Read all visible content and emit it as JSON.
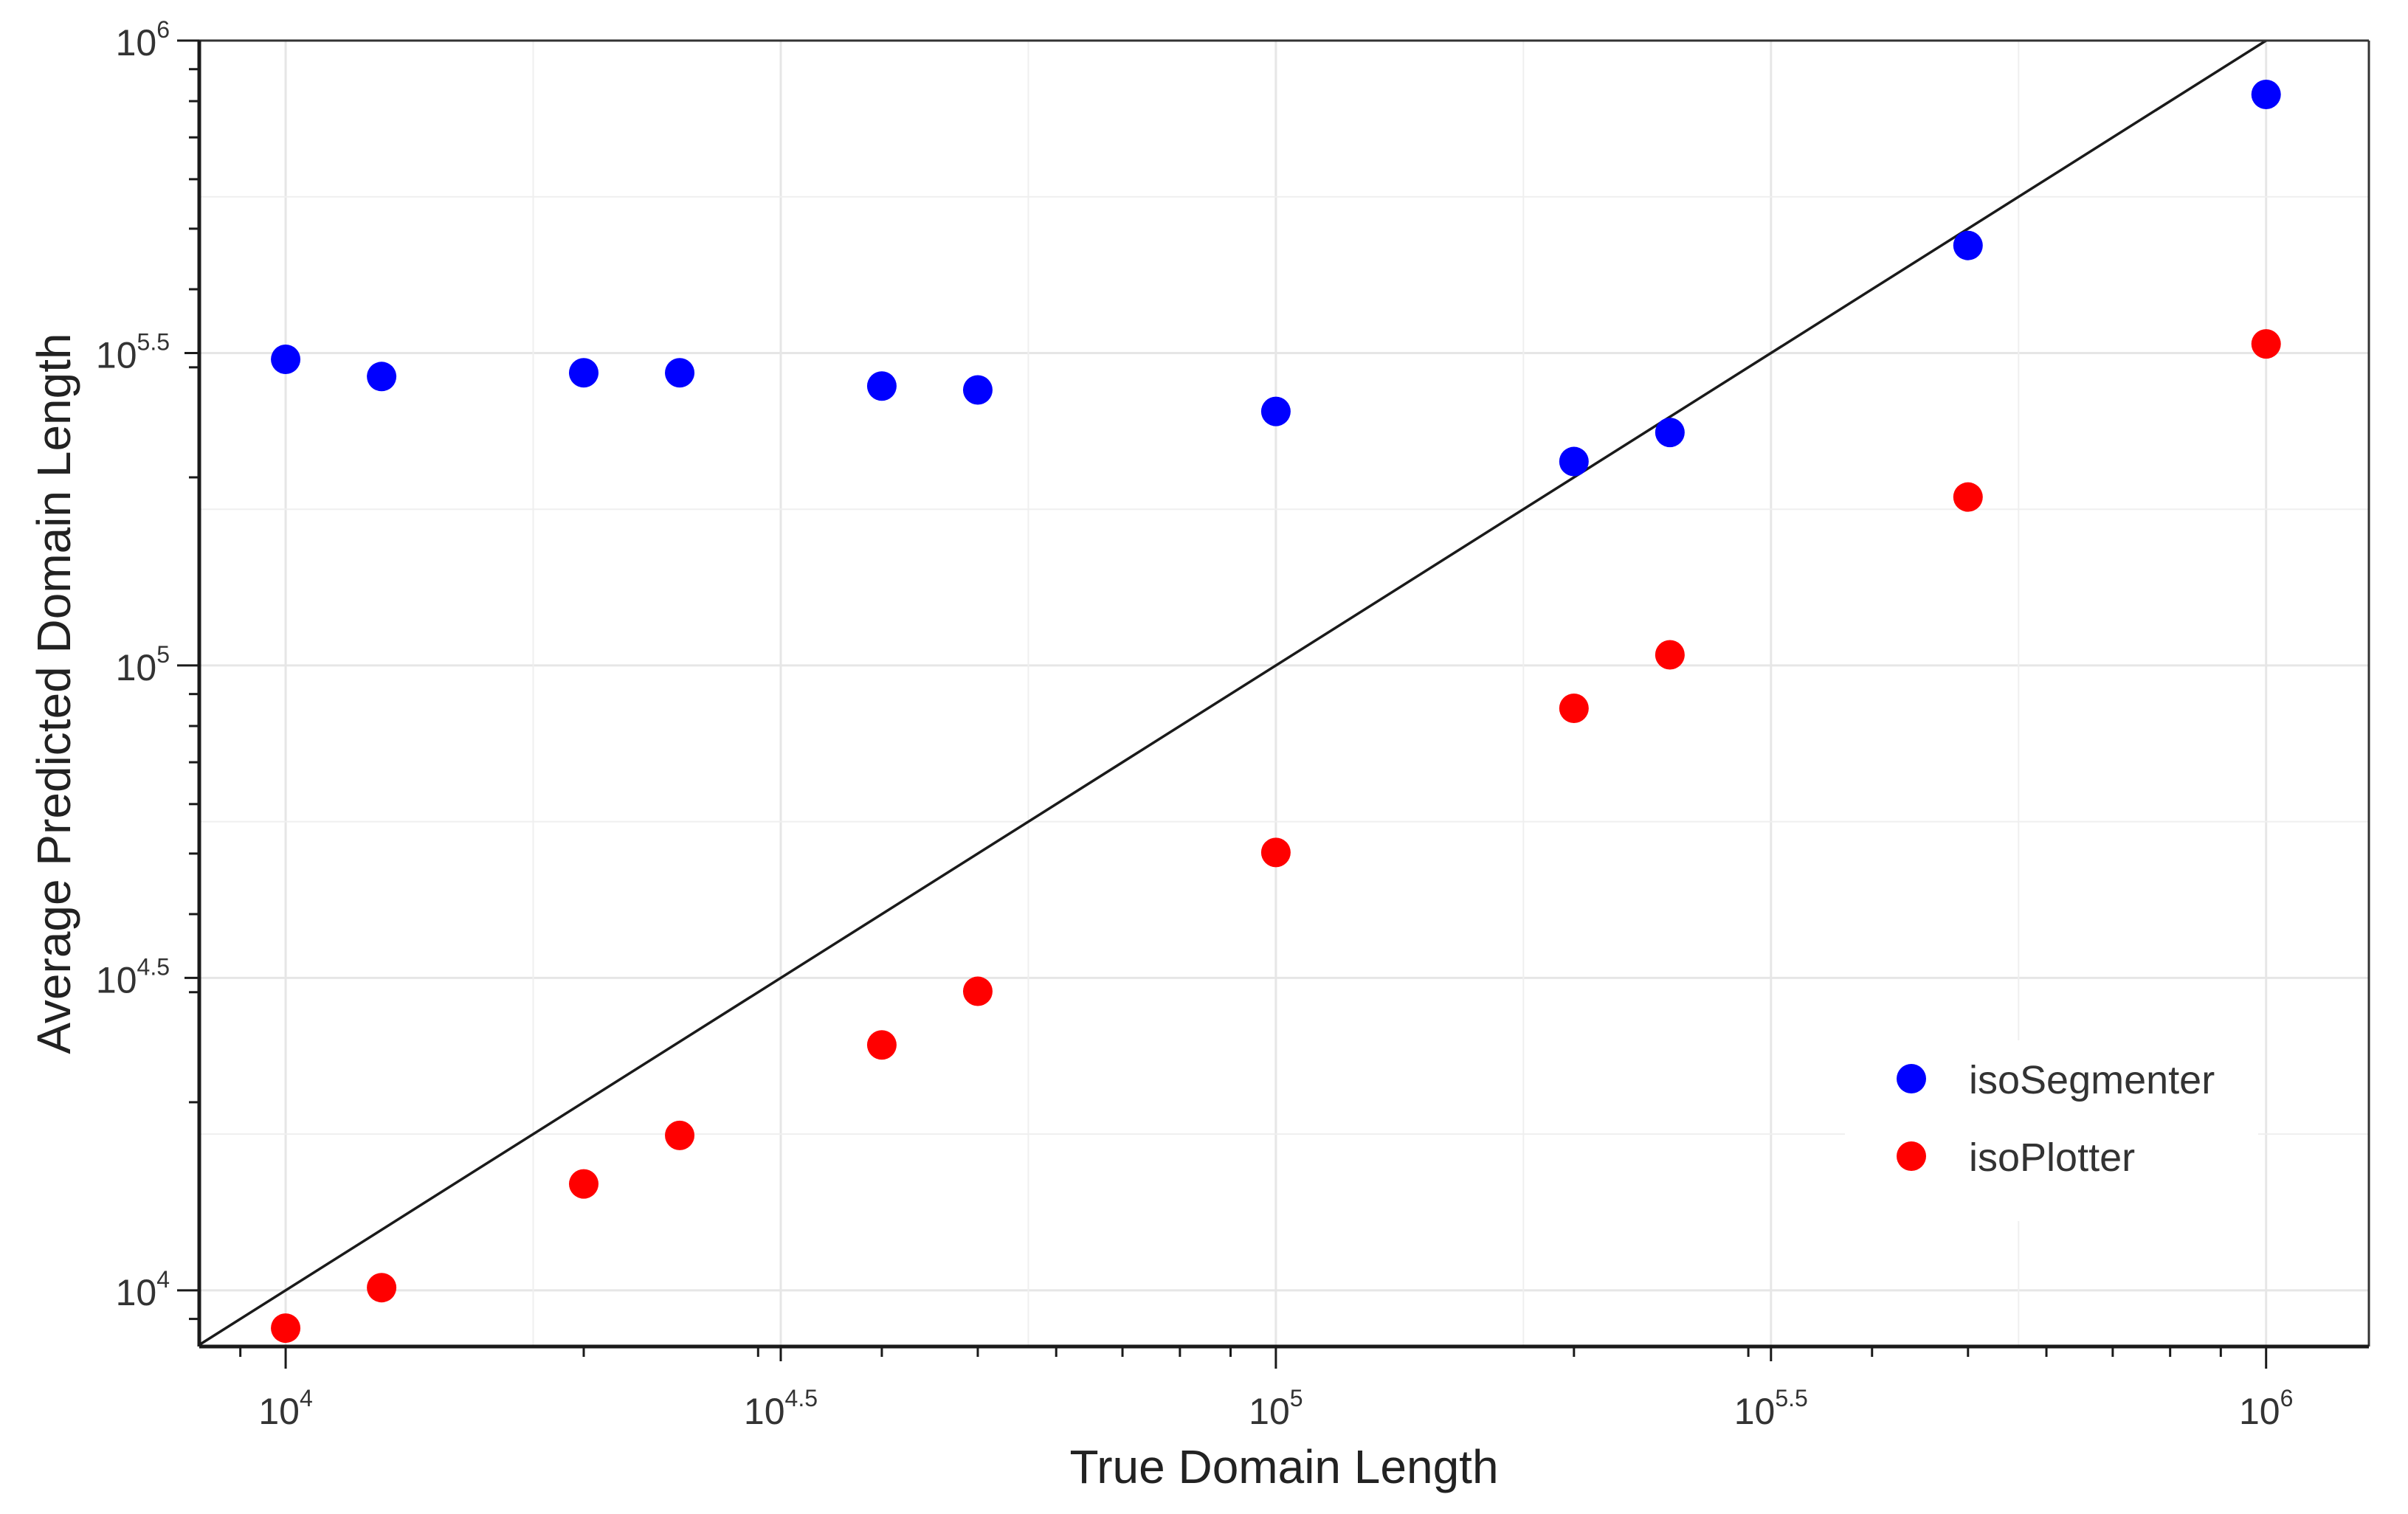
{
  "chart_data": {
    "type": "scatter",
    "title": "",
    "xlabel": "True Domain Length",
    "ylabel": "Average Predicted Domain Length",
    "x_scale": "log10",
    "y_scale": "log10",
    "xlim": [
      8180,
      1270000
    ],
    "ylim": [
      8130,
      1000000
    ],
    "x_ticks": [
      {
        "value": 10000,
        "base": "10",
        "exp": "4"
      },
      {
        "value": 31623,
        "base": "10",
        "exp": "4.5"
      },
      {
        "value": 100000,
        "base": "10",
        "exp": "5"
      },
      {
        "value": 316228,
        "base": "10",
        "exp": "5.5"
      },
      {
        "value": 1000000,
        "base": "10",
        "exp": "6"
      }
    ],
    "y_ticks": [
      {
        "value": 10000,
        "base": "10",
        "exp": "4"
      },
      {
        "value": 31623,
        "base": "10",
        "exp": "4.5"
      },
      {
        "value": 100000,
        "base": "10",
        "exp": "5"
      },
      {
        "value": 316228,
        "base": "10",
        "exp": "5.5"
      },
      {
        "value": 1000000,
        "base": "10",
        "exp": "6"
      }
    ],
    "grid": true,
    "reference_line": "y = x",
    "legend_position": "bottom-right",
    "series": [
      {
        "name": "isoSegmenter",
        "color": "#0000ff",
        "points": [
          {
            "x": 10000,
            "y": 309000
          },
          {
            "x": 12500,
            "y": 290000
          },
          {
            "x": 20000,
            "y": 294000
          },
          {
            "x": 25000,
            "y": 294000
          },
          {
            "x": 40000,
            "y": 280000
          },
          {
            "x": 50000,
            "y": 276000
          },
          {
            "x": 100000,
            "y": 255000
          },
          {
            "x": 200000,
            "y": 212000
          },
          {
            "x": 250000,
            "y": 236000
          },
          {
            "x": 500000,
            "y": 470000
          },
          {
            "x": 1000000,
            "y": 820000
          }
        ]
      },
      {
        "name": "isoPlotter",
        "color": "#ff0000",
        "points": [
          {
            "x": 10000,
            "y": 8700
          },
          {
            "x": 12500,
            "y": 10100
          },
          {
            "x": 20000,
            "y": 14800
          },
          {
            "x": 25000,
            "y": 17700
          },
          {
            "x": 40000,
            "y": 24700
          },
          {
            "x": 50000,
            "y": 30100
          },
          {
            "x": 100000,
            "y": 50200
          },
          {
            "x": 200000,
            "y": 85400
          },
          {
            "x": 250000,
            "y": 104000
          },
          {
            "x": 500000,
            "y": 186000
          },
          {
            "x": 1000000,
            "y": 327000
          }
        ]
      }
    ]
  }
}
